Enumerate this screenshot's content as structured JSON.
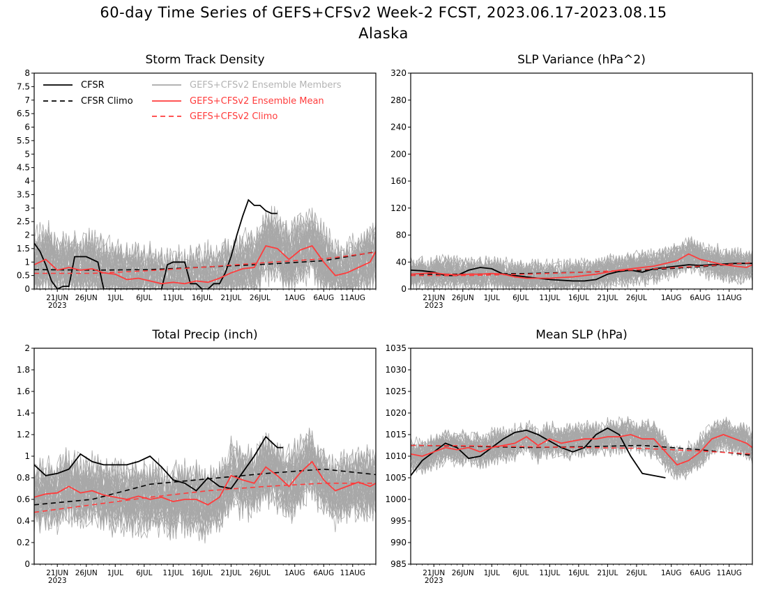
{
  "header": {
    "title": "60-day Time Series of GEFS+CFSv2 Week-2 FCST, 2023.06.17-2023.08.15",
    "region": "Alaska"
  },
  "legend": {
    "cfsr": "CFSR",
    "cfsr_climo": "CFSR Climo",
    "members": "GEFS+CFSv2 Ensemble Members",
    "mean": "GEFS+CFSv2 Ensemble Mean",
    "climo": "GEFS+CFSv2 Climo"
  },
  "colors": {
    "cfsr": "#000000",
    "members": "#a8a8a8",
    "mean": "#ff3c3c",
    "climo": "#ff3c3c",
    "legend_members_text": "#b4b4b4"
  },
  "x_axis": {
    "ticks": [
      {
        "day": 4,
        "label": "21JUN"
      },
      {
        "day": 9,
        "label": "26JUN"
      },
      {
        "day": 14,
        "label": "1JUL"
      },
      {
        "day": 19,
        "label": "6JUL"
      },
      {
        "day": 24,
        "label": "11JUL"
      },
      {
        "day": 29,
        "label": "16JUL"
      },
      {
        "day": 34,
        "label": "21JUL"
      },
      {
        "day": 39,
        "label": "26JUL"
      },
      {
        "day": 45,
        "label": "1AUG"
      },
      {
        "day": 50,
        "label": "6AUG"
      },
      {
        "day": 55,
        "label": "11AUG"
      }
    ],
    "year": "2023",
    "range": [
      0,
      59
    ]
  },
  "chart_data": [
    {
      "type": "line",
      "title": "Storm Track Density",
      "ylim": [
        0,
        8
      ],
      "yticks": [
        "0",
        "0.5",
        "1",
        "1.5",
        "2",
        "2.5",
        "3",
        "3.5",
        "4",
        "4.5",
        "5",
        "5.5",
        "6",
        "6.5",
        "7",
        "7.5",
        "8"
      ],
      "legend_placement": "top",
      "series": [
        {
          "name": "CFSR",
          "style": "solid-black",
          "x": [
            0,
            1,
            2,
            3,
            4,
            5,
            6,
            7,
            8,
            9,
            10,
            11,
            12,
            13,
            14,
            15,
            16,
            17,
            18,
            19,
            20,
            21,
            22,
            23,
            24,
            25,
            26,
            27,
            28,
            29,
            30,
            31,
            32,
            33,
            34,
            35,
            36,
            37,
            38,
            39,
            40,
            41,
            42
          ],
          "y": [
            1.7,
            1.4,
            0.9,
            0.3,
            0.0,
            0.1,
            0.1,
            1.2,
            1.2,
            1.2,
            1.1,
            1.0,
            0.0,
            0.0,
            0.0,
            0.0,
            0.0,
            0.0,
            0.0,
            0.0,
            0.0,
            0.0,
            0.0,
            0.9,
            1.0,
            1.0,
            1.0,
            0.2,
            0.2,
            0.0,
            0.0,
            0.2,
            0.2,
            0.6,
            1.2,
            2.0,
            2.7,
            3.3,
            3.1,
            3.1,
            2.9,
            2.8,
            2.8
          ]
        },
        {
          "name": "CFSR Climo",
          "style": "dashed-black",
          "x": [
            0,
            10,
            20,
            30,
            40,
            50,
            59
          ],
          "y": [
            0.72,
            0.7,
            0.72,
            0.82,
            0.92,
            1.05,
            1.38
          ]
        },
        {
          "name": "GEFS+CFSv2 Ensemble Mean",
          "style": "solid-red",
          "x": [
            0,
            2,
            4,
            6,
            8,
            10,
            12,
            14,
            16,
            18,
            20,
            22,
            24,
            26,
            28,
            30,
            32,
            34,
            36,
            38,
            40,
            42,
            44,
            46,
            48,
            50,
            52,
            54,
            56,
            58,
            59
          ],
          "y": [
            0.9,
            1.1,
            0.7,
            0.8,
            0.7,
            0.75,
            0.6,
            0.55,
            0.35,
            0.4,
            0.3,
            0.2,
            0.25,
            0.2,
            0.3,
            0.25,
            0.4,
            0.6,
            0.75,
            0.8,
            1.6,
            1.5,
            1.1,
            1.45,
            1.6,
            1.0,
            0.5,
            0.6,
            0.8,
            1.0,
            1.4
          ]
        },
        {
          "name": "GEFS+CFSv2 Climo",
          "style": "dashed-red",
          "x": [
            0,
            10,
            20,
            30,
            40,
            50,
            59
          ],
          "y": [
            0.58,
            0.58,
            0.68,
            0.82,
            0.98,
            1.12,
            1.36
          ]
        }
      ],
      "members": {
        "count": 40,
        "base": "mean",
        "spread": 2.0
      }
    },
    {
      "type": "line",
      "title": "SLP Variance (hPa^2)",
      "ylim": [
        0,
        320
      ],
      "yticks": [
        "0",
        "40",
        "80",
        "120",
        "160",
        "200",
        "240",
        "280",
        "320"
      ],
      "series": [
        {
          "name": "CFSR",
          "style": "solid-black",
          "x": [
            0,
            2,
            4,
            6,
            8,
            10,
            12,
            14,
            16,
            18,
            20,
            22,
            24,
            26,
            28,
            30,
            32,
            34,
            36,
            38,
            40,
            42,
            44,
            46,
            48,
            50,
            52,
            54,
            56,
            58,
            59
          ],
          "y": [
            28,
            27,
            25,
            20,
            20,
            28,
            32,
            30,
            22,
            20,
            18,
            16,
            14,
            13,
            12,
            12,
            14,
            22,
            26,
            28,
            25,
            30,
            32,
            34,
            36,
            35,
            36,
            37,
            38,
            38,
            38
          ]
        },
        {
          "name": "CFSR Climo",
          "style": "dashed-black",
          "x": [
            0,
            10,
            20,
            30,
            40,
            50,
            59
          ],
          "y": [
            22,
            22,
            23,
            25,
            28,
            33,
            39
          ]
        },
        {
          "name": "GEFS+CFSv2 Ensemble Mean",
          "style": "solid-red",
          "x": [
            0,
            2,
            4,
            6,
            8,
            10,
            12,
            14,
            16,
            18,
            20,
            22,
            24,
            26,
            28,
            30,
            32,
            34,
            36,
            38,
            40,
            42,
            44,
            46,
            48,
            50,
            52,
            54,
            56,
            58,
            59
          ],
          "y": [
            22,
            23,
            24,
            22,
            21,
            22,
            22,
            23,
            22,
            18,
            16,
            16,
            16,
            17,
            18,
            20,
            22,
            25,
            28,
            30,
            32,
            34,
            38,
            42,
            52,
            44,
            40,
            36,
            34,
            32,
            36
          ]
        },
        {
          "name": "GEFS+CFSv2 Climo",
          "style": "dashed-red",
          "x": [
            0,
            10,
            20,
            30,
            40,
            50,
            59
          ],
          "y": [
            20,
            20,
            22,
            25,
            29,
            34,
            39
          ]
        }
      ],
      "members": {
        "count": 40,
        "base": "mean",
        "spread": 38
      }
    },
    {
      "type": "line",
      "title": "Total Precip (inch)",
      "ylim": [
        0,
        2
      ],
      "yticks": [
        "0",
        "0.2",
        "0.4",
        "0.6",
        "0.8",
        "1",
        "1.2",
        "1.4",
        "1.6",
        "1.8",
        "2"
      ],
      "series": [
        {
          "name": "CFSR",
          "style": "solid-black",
          "x": [
            0,
            2,
            4,
            6,
            8,
            10,
            12,
            14,
            16,
            18,
            20,
            22,
            24,
            26,
            28,
            30,
            32,
            34,
            36,
            38,
            40,
            42,
            43
          ],
          "y": [
            0.92,
            0.82,
            0.84,
            0.88,
            1.02,
            0.95,
            0.92,
            0.92,
            0.92,
            0.95,
            1.0,
            0.9,
            0.78,
            0.75,
            0.68,
            0.8,
            0.72,
            0.7,
            0.85,
            1.0,
            1.18,
            1.08,
            1.08
          ]
        },
        {
          "name": "CFSR Climo",
          "style": "dashed-black",
          "x": [
            0,
            10,
            20,
            30,
            40,
            50,
            59
          ],
          "y": [
            0.55,
            0.6,
            0.74,
            0.79,
            0.84,
            0.88,
            0.83
          ]
        },
        {
          "name": "GEFS+CFSv2 Ensemble Mean",
          "style": "solid-red",
          "x": [
            0,
            2,
            4,
            6,
            8,
            10,
            12,
            14,
            16,
            18,
            20,
            22,
            24,
            26,
            28,
            30,
            32,
            34,
            36,
            38,
            40,
            42,
            44,
            46,
            48,
            50,
            52,
            54,
            56,
            58,
            59
          ],
          "y": [
            0.62,
            0.65,
            0.66,
            0.72,
            0.66,
            0.68,
            0.64,
            0.62,
            0.6,
            0.63,
            0.6,
            0.62,
            0.58,
            0.6,
            0.6,
            0.55,
            0.62,
            0.82,
            0.78,
            0.75,
            0.9,
            0.82,
            0.72,
            0.85,
            0.95,
            0.78,
            0.68,
            0.72,
            0.76,
            0.72,
            0.75
          ]
        },
        {
          "name": "GEFS+CFSv2 Climo",
          "style": "dashed-red",
          "x": [
            0,
            10,
            20,
            30,
            40,
            50,
            59
          ],
          "y": [
            0.48,
            0.55,
            0.62,
            0.68,
            0.72,
            0.75,
            0.75
          ]
        }
      ],
      "members": {
        "count": 40,
        "base": "mean",
        "spread": 0.5
      }
    },
    {
      "type": "line",
      "title": "Mean SLP (hPa)",
      "ylim": [
        985,
        1035
      ],
      "yticks": [
        "985",
        "990",
        "995",
        "1000",
        "1005",
        "1010",
        "1015",
        "1020",
        "1025",
        "1030",
        "1035"
      ],
      "series": [
        {
          "name": "CFSR",
          "style": "solid-black",
          "x": [
            0,
            2,
            4,
            6,
            8,
            10,
            12,
            14,
            16,
            18,
            20,
            22,
            24,
            26,
            28,
            30,
            32,
            34,
            36,
            38,
            40,
            42,
            44
          ],
          "y": [
            1005.5,
            1009,
            1011,
            1013,
            1012,
            1009.5,
            1010,
            1012,
            1014,
            1015.5,
            1016,
            1015,
            1013.5,
            1012,
            1011,
            1012,
            1015,
            1016.5,
            1015,
            1010,
            1006,
            1005.5,
            1005
          ]
        },
        {
          "name": "CFSR Climo",
          "style": "dashed-black",
          "x": [
            0,
            10,
            20,
            30,
            40,
            50,
            59
          ],
          "y": [
            1012.5,
            1012.3,
            1012,
            1012.2,
            1012.5,
            1011.5,
            1010.2
          ]
        },
        {
          "name": "GEFS+CFSv2 Ensemble Mean",
          "style": "solid-red",
          "x": [
            0,
            2,
            4,
            6,
            8,
            10,
            12,
            14,
            16,
            18,
            20,
            22,
            24,
            26,
            28,
            30,
            32,
            34,
            36,
            38,
            40,
            42,
            44,
            46,
            48,
            50,
            52,
            54,
            56,
            58,
            59
          ],
          "y": [
            1010.5,
            1010,
            1011,
            1012,
            1011.5,
            1012,
            1011,
            1012,
            1012.5,
            1013,
            1014.5,
            1012.5,
            1014,
            1013,
            1013.5,
            1014,
            1014,
            1014.5,
            1014.5,
            1015,
            1014,
            1014,
            1011,
            1008,
            1009,
            1011,
            1014,
            1015,
            1014,
            1013,
            1012
          ]
        },
        {
          "name": "GEFS+CFSv2 Climo",
          "style": "dashed-red",
          "x": [
            0,
            10,
            20,
            30,
            40,
            50,
            59
          ],
          "y": [
            1012.5,
            1012.4,
            1012.2,
            1012,
            1011.8,
            1011.2,
            1010.5
          ]
        }
      ],
      "members": {
        "count": 40,
        "base": "mean",
        "spread": 6
      }
    }
  ]
}
